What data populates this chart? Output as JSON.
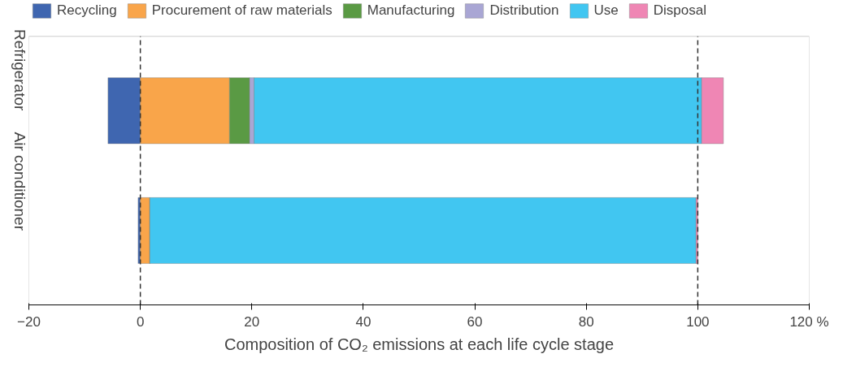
{
  "chart_data": {
    "type": "bar",
    "orientation": "horizontal",
    "stacked": true,
    "categories": [
      "Refrigerator",
      "Air conditioner"
    ],
    "series": [
      {
        "name": "Recycling",
        "color": "#3f66b0",
        "values": [
          -5.8,
          -0.4
        ]
      },
      {
        "name": "Procurement of raw materials",
        "color": "#f9a54a",
        "values": [
          16.0,
          1.7
        ]
      },
      {
        "name": "Manufacturing",
        "color": "#5a9a44",
        "values": [
          3.6,
          null
        ]
      },
      {
        "name": "Distribution",
        "color": "#a9a6d4",
        "values": [
          0.8,
          0.0
        ]
      },
      {
        "name": "Use",
        "color": "#41c6f1",
        "values": [
          80.3,
          98.0
        ]
      },
      {
        "name": "Disposal",
        "color": "#ef86b4",
        "values": [
          3.9,
          0.3
        ]
      }
    ],
    "xlabel": "Composition of CO₂ emissions at each life cycle stage",
    "xlim": [
      -20,
      120
    ],
    "xticks": [
      -20,
      0,
      20,
      40,
      60,
      80,
      100,
      {
        "value": 120,
        "label": "120 %"
      }
    ],
    "ref_lines": [
      {
        "axis": "x",
        "value": 0,
        "line_style": "dashed",
        "color": "#333333"
      },
      {
        "axis": "x",
        "value": 100,
        "line_style": "dashed",
        "color": "#333333"
      }
    ],
    "legend": "top",
    "grid": false
  }
}
